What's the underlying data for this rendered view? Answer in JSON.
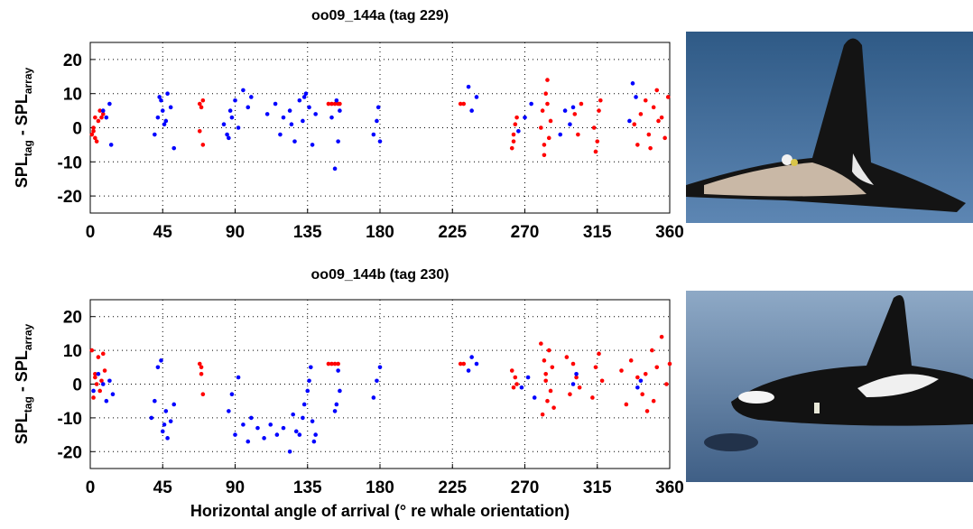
{
  "chart_data": [
    {
      "type": "scatter",
      "title": "oo09_144a (tag 229)",
      "ylabel_parts": [
        "SPL",
        "tag",
        " - SPL",
        "array"
      ],
      "xlim": [
        0,
        360
      ],
      "xticks": [
        0,
        45,
        90,
        135,
        180,
        225,
        270,
        315,
        360
      ],
      "ylim": [
        -25,
        25
      ],
      "yticks": [
        -20,
        -10,
        0,
        10,
        20
      ],
      "grid": true,
      "series": [
        {
          "color": "#ff0000",
          "x": [
            1,
            2,
            3,
            4,
            5,
            6,
            2,
            3,
            7,
            8,
            68,
            69,
            70,
            68,
            70,
            148,
            150,
            152,
            154,
            155,
            230,
            232,
            262,
            263,
            264,
            265,
            263,
            280,
            281,
            282,
            283,
            284,
            285,
            286,
            282,
            284,
            301,
            303,
            305,
            313,
            314,
            316,
            317,
            315,
            338,
            340,
            342,
            345,
            347,
            350,
            352,
            355,
            357,
            359,
            348,
            353
          ],
          "y": [
            -2,
            0,
            3,
            -4,
            2,
            5,
            -1,
            -3,
            3,
            4,
            7,
            6,
            -5,
            -1,
            8,
            7,
            7,
            7,
            7,
            7,
            7,
            7,
            -6,
            -2,
            1,
            3,
            -4,
            0,
            5,
            -8,
            10,
            14,
            -3,
            2,
            -5,
            7,
            4,
            -2,
            7,
            0,
            -7,
            5,
            8,
            -4,
            1,
            -5,
            4,
            8,
            -2,
            6,
            11,
            3,
            -3,
            9,
            -6,
            2
          ]
        },
        {
          "color": "#0000ff",
          "x": [
            8,
            10,
            12,
            13,
            40,
            42,
            44,
            45,
            46,
            48,
            50,
            52,
            47,
            43,
            83,
            85,
            87,
            88,
            90,
            92,
            95,
            98,
            100,
            86,
            110,
            115,
            118,
            120,
            124,
            127,
            130,
            132,
            134,
            136,
            138,
            140,
            125,
            133,
            150,
            152,
            153,
            154,
            155,
            176,
            178,
            179,
            180,
            235,
            237,
            240,
            266,
            270,
            274,
            292,
            295,
            298,
            300,
            335,
            337,
            339
          ],
          "y": [
            5,
            3,
            7,
            -5,
            -2,
            3,
            8,
            5,
            1,
            10,
            6,
            -6,
            2,
            9,
            1,
            -2,
            5,
            3,
            8,
            0,
            11,
            6,
            9,
            -3,
            4,
            7,
            -2,
            3,
            5,
            -4,
            8,
            2,
            10,
            6,
            -5,
            4,
            1,
            9,
            3,
            -12,
            8,
            -4,
            5,
            -2,
            2,
            6,
            -4,
            12,
            5,
            9,
            -1,
            3,
            7,
            -2,
            5,
            1,
            6,
            2,
            13,
            9
          ]
        }
      ]
    },
    {
      "type": "scatter",
      "title": "oo09_144b (tag 230)",
      "ylabel_parts": [
        "SPL",
        "tag",
        " - SPL",
        "array"
      ],
      "xlabel": "Horizontal angle of arrival (° re whale orientation)",
      "xlim": [
        0,
        360
      ],
      "xticks": [
        0,
        45,
        90,
        135,
        180,
        225,
        270,
        315,
        360
      ],
      "ylim": [
        -25,
        25
      ],
      "yticks": [
        -20,
        -10,
        0,
        10,
        20
      ],
      "grid": true,
      "series": [
        {
          "color": "#ff0000",
          "x": [
            1,
            2,
            3,
            4,
            5,
            6,
            8,
            9,
            3,
            7,
            68,
            69,
            70,
            69,
            148,
            150,
            152,
            154,
            230,
            232,
            262,
            263,
            264,
            265,
            280,
            281,
            282,
            283,
            284,
            285,
            286,
            287,
            288,
            283,
            296,
            298,
            300,
            302,
            304,
            312,
            314,
            316,
            318,
            330,
            333,
            336,
            340,
            343,
            346,
            349,
            352,
            355,
            358,
            360,
            350,
            345
          ],
          "y": [
            10,
            -4,
            3,
            0,
            8,
            -2,
            9,
            4,
            2,
            1,
            6,
            3,
            -3,
            5,
            6,
            6,
            6,
            6,
            6,
            6,
            4,
            -1,
            2,
            0,
            12,
            -9,
            7,
            3,
            -5,
            10,
            -2,
            5,
            -7,
            1,
            8,
            -3,
            6,
            2,
            -1,
            -4,
            5,
            9,
            1,
            4,
            -6,
            7,
            2,
            -3,
            -8,
            10,
            5,
            14,
            0,
            6,
            -5,
            3
          ]
        },
        {
          "color": "#0000ff",
          "x": [
            2,
            5,
            8,
            10,
            12,
            14,
            38,
            40,
            42,
            44,
            45,
            47,
            48,
            50,
            52,
            46,
            86,
            88,
            90,
            92,
            95,
            98,
            100,
            104,
            108,
            112,
            116,
            120,
            124,
            128,
            130,
            132,
            133,
            135,
            136,
            137,
            138,
            139,
            140,
            126,
            152,
            153,
            154,
            155,
            176,
            178,
            180,
            235,
            237,
            240,
            268,
            272,
            276,
            300,
            302,
            340,
            342
          ],
          "y": [
            -2,
            3,
            0,
            -5,
            1,
            -3,
            -10,
            -5,
            5,
            7,
            -14,
            -8,
            -16,
            -11,
            -6,
            -12,
            -8,
            -3,
            -15,
            2,
            -12,
            -17,
            -10,
            -13,
            -16,
            -12,
            -15,
            -13,
            -20,
            -14,
            -15,
            -10,
            -6,
            -2,
            1,
            5,
            -11,
            -17,
            -15,
            -9,
            -8,
            -6,
            4,
            -2,
            -4,
            1,
            5,
            4,
            8,
            6,
            -1,
            2,
            -4,
            0,
            3,
            -1,
            1
          ]
        }
      ]
    }
  ]
}
